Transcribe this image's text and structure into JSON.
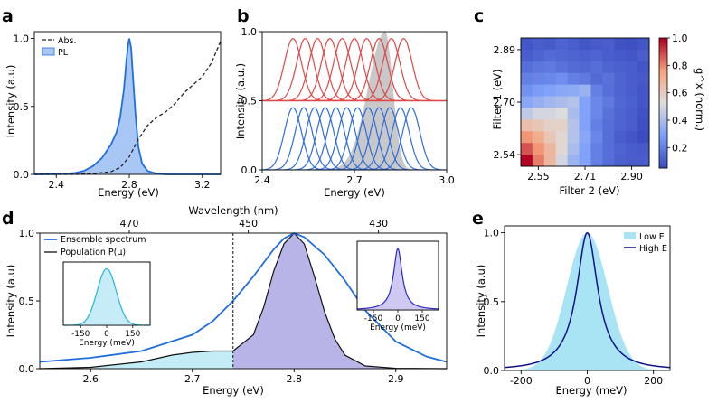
{
  "chart_data": [
    {
      "panel": "a",
      "type": "line",
      "xlabel": "Energy (eV)",
      "ylabel": "Intensity (a.u)",
      "xlim": [
        2.28,
        3.3
      ],
      "ylim": [
        0,
        1.05
      ],
      "xticks": [
        "2.4",
        "2.8",
        "3.2"
      ],
      "yticks": [
        "0.0",
        "0.5",
        "1.0"
      ],
      "legend_position": "top-left",
      "series": [
        {
          "name": "Abs.",
          "style": "dashed",
          "color": "#222222",
          "x": [
            2.28,
            2.5,
            2.6,
            2.7,
            2.75,
            2.8,
            2.85,
            2.9,
            2.95,
            3.0,
            3.05,
            3.1,
            3.15,
            3.2,
            3.25,
            3.3
          ],
          "y": [
            0.0,
            0.0,
            0.005,
            0.02,
            0.05,
            0.13,
            0.26,
            0.36,
            0.42,
            0.46,
            0.52,
            0.6,
            0.66,
            0.72,
            0.82,
            0.98
          ]
        },
        {
          "name": "PL",
          "style": "filled",
          "color": "#1f6fe0",
          "fill": "#a9c7f5",
          "x": [
            2.28,
            2.4,
            2.5,
            2.55,
            2.6,
            2.65,
            2.7,
            2.73,
            2.75,
            2.77,
            2.785,
            2.795,
            2.8,
            2.81,
            2.82,
            2.835,
            2.85,
            2.87,
            2.9,
            2.95,
            3.0,
            3.3
          ],
          "y": [
            0.0,
            0.002,
            0.01,
            0.025,
            0.06,
            0.12,
            0.22,
            0.31,
            0.42,
            0.62,
            0.85,
            0.97,
            1.0,
            0.93,
            0.72,
            0.42,
            0.2,
            0.08,
            0.025,
            0.005,
            0.0,
            0.0
          ]
        }
      ]
    },
    {
      "panel": "b",
      "type": "line",
      "xlabel": "Energy (eV)",
      "ylabel": "Intensity (a.u.)",
      "xlim": [
        2.4,
        3.0
      ],
      "ylim": [
        0,
        1.0
      ],
      "xticks": [
        "2.4",
        "2.7",
        "3.0"
      ],
      "yticks": [
        "0.0",
        "0.5",
        "1.0"
      ],
      "gaussian_width": 0.028,
      "red_offset": 0.5,
      "red_centers": [
        2.5,
        2.54,
        2.58,
        2.62,
        2.66,
        2.7,
        2.74,
        2.78,
        2.82,
        2.86
      ],
      "red_amplitude": 0.45,
      "blue_centers": [
        2.5,
        2.535,
        2.57,
        2.605,
        2.64,
        2.675,
        2.71,
        2.745,
        2.78,
        2.815,
        2.85,
        2.885
      ],
      "blue_amplitude": 0.45,
      "gray_peak": {
        "center": 2.8,
        "amplitude": 1.0
      }
    },
    {
      "panel": "c",
      "type": "heatmap",
      "xlabel": "Filter 2 (eV)",
      "ylabel": "Filter 1 (eV)",
      "colorbar_label": "g^x (norm.)",
      "xticks": [
        "2.55",
        "2.71",
        "2.90"
      ],
      "yticks": [
        "2.89",
        "2.70",
        "2.54"
      ],
      "colorbar_ticks": [
        "0.2",
        "0.4",
        "0.6",
        "0.8",
        "1.0"
      ],
      "vlim": [
        0.05,
        1.0
      ],
      "rows_top_to_bottom": [
        [
          0.08,
          0.1,
          0.09,
          0.12,
          0.1,
          0.08,
          0.09,
          0.1,
          0.07,
          0.06,
          0.08
        ],
        [
          0.1,
          0.12,
          0.14,
          0.13,
          0.12,
          0.11,
          0.12,
          0.1,
          0.09,
          0.08,
          0.1
        ],
        [
          0.15,
          0.17,
          0.18,
          0.16,
          0.14,
          0.13,
          0.15,
          0.12,
          0.11,
          0.1,
          0.08
        ],
        [
          0.2,
          0.21,
          0.22,
          0.24,
          0.2,
          0.18,
          0.14,
          0.16,
          0.12,
          0.1,
          0.09
        ],
        [
          0.25,
          0.28,
          0.3,
          0.32,
          0.33,
          0.36,
          0.2,
          0.15,
          0.12,
          0.1,
          0.08
        ],
        [
          0.32,
          0.35,
          0.38,
          0.4,
          0.42,
          0.3,
          0.22,
          0.18,
          0.13,
          0.11,
          0.08
        ],
        [
          0.45,
          0.5,
          0.5,
          0.52,
          0.4,
          0.3,
          0.22,
          0.16,
          0.12,
          0.1,
          0.07
        ],
        [
          0.65,
          0.62,
          0.58,
          0.58,
          0.42,
          0.3,
          0.2,
          0.15,
          0.12,
          0.1,
          0.06
        ],
        [
          0.78,
          0.72,
          0.62,
          0.55,
          0.42,
          0.32,
          0.22,
          0.15,
          0.1,
          0.08,
          0.05
        ],
        [
          0.88,
          0.78,
          0.68,
          0.55,
          0.4,
          0.3,
          0.2,
          0.15,
          0.12,
          0.1,
          0.09
        ],
        [
          1.0,
          0.82,
          0.68,
          0.5,
          0.36,
          0.3,
          0.2,
          0.15,
          0.11,
          0.1,
          0.1
        ]
      ]
    },
    {
      "panel": "d",
      "type": "line",
      "xlabel": "Energy (eV)",
      "ylabel": "Intensity (a.u)",
      "top_xlabel": "Wavelength (nm)",
      "top_xticks": [
        {
          "label": "470",
          "energy": 2.638
        },
        {
          "label": "450",
          "energy": 2.755
        },
        {
          "label": "430",
          "energy": 2.883
        }
      ],
      "xlim": [
        2.55,
        2.95
      ],
      "ylim": [
        0,
        1.0
      ],
      "xticks": [
        "2.6",
        "2.7",
        "2.8",
        "2.9"
      ],
      "yticks": [
        "0.0",
        "0.5",
        "1.0"
      ],
      "vline_energy": 2.74,
      "legend_position": "top-left",
      "series": [
        {
          "name": "Ensemble spectrum",
          "color": "#1f6fe0",
          "x": [
            2.55,
            2.6,
            2.65,
            2.7,
            2.72,
            2.74,
            2.76,
            2.78,
            2.79,
            2.8,
            2.81,
            2.83,
            2.85,
            2.87,
            2.9,
            2.93,
            2.95
          ],
          "y": [
            0.05,
            0.08,
            0.13,
            0.25,
            0.35,
            0.5,
            0.68,
            0.88,
            0.96,
            1.0,
            0.97,
            0.84,
            0.65,
            0.43,
            0.2,
            0.09,
            0.05
          ]
        },
        {
          "name": "Population P(μ)",
          "color": "#111111",
          "x": [
            2.55,
            2.6,
            2.65,
            2.68,
            2.7,
            2.72,
            2.74,
            2.76,
            2.77,
            2.78,
            2.79,
            2.8,
            2.81,
            2.82,
            2.83,
            2.84,
            2.85,
            2.87,
            2.9,
            2.95
          ],
          "y": [
            0.0,
            0.01,
            0.05,
            0.1,
            0.12,
            0.13,
            0.13,
            0.25,
            0.45,
            0.72,
            0.92,
            1.0,
            0.92,
            0.68,
            0.42,
            0.22,
            0.1,
            0.02,
            0.003,
            0.0
          ]
        }
      ],
      "insets": [
        {
          "side": "left",
          "xlabel": "Energy (meV)",
          "xticks": [
            "-150",
            "0",
            "150"
          ],
          "xlim": [
            -250,
            250
          ],
          "sigma": 55,
          "color": "#22b5dd",
          "fill": "#c6ecf7"
        },
        {
          "side": "right",
          "xlabel": "Energy (meV)",
          "xticks": [
            "-150",
            "0",
            "150"
          ],
          "xlim": [
            -250,
            250
          ],
          "sigma": 32,
          "color": "#2b2bc9",
          "fill": "#cfc8f0"
        }
      ]
    },
    {
      "panel": "e",
      "type": "area",
      "xlabel": "Energy (meV)",
      "ylabel": "Intensity (a.u)",
      "xlim": [
        -250,
        250
      ],
      "ylim": [
        0,
        1.05
      ],
      "xticks": [
        "-200",
        "0",
        "200"
      ],
      "yticks": [
        "0.0",
        "0.5",
        "1.0"
      ],
      "legend_position": "top-right",
      "series": [
        {
          "name": "Low E",
          "style": "filled",
          "color": "#a9e4f5",
          "sigma": 62
        },
        {
          "name": "High E",
          "style": "line",
          "color": "#11118a",
          "gamma": 38
        }
      ]
    }
  ],
  "labels": {
    "a": "a",
    "b": "b",
    "c": "c",
    "d": "d",
    "e": "e",
    "a_xlabel": "Energy (eV)",
    "a_ylabel": "Intensity (a.u)",
    "a_leg1": "Abs.",
    "a_leg2": "PL",
    "b_xlabel": "Energy (eV)",
    "b_ylabel": "Intensity (a.u.)",
    "c_xlabel": "Filter 2 (eV)",
    "c_ylabel": "Filter 1 (eV)",
    "c_cbar": "g^x (norm.)",
    "d_xlabel": "Energy (eV)",
    "d_ylabel": "Intensity (a.u)",
    "d_top": "Wavelength (nm)",
    "d_leg1": "Ensemble spectrum",
    "d_leg2": "Population P(μ)",
    "d_inset_xlabel": "Energy (meV)",
    "e_xlabel": "Energy (meV)",
    "e_ylabel": "Intensity (a.u)",
    "e_leg1": "Low E",
    "e_leg2": "High E"
  }
}
